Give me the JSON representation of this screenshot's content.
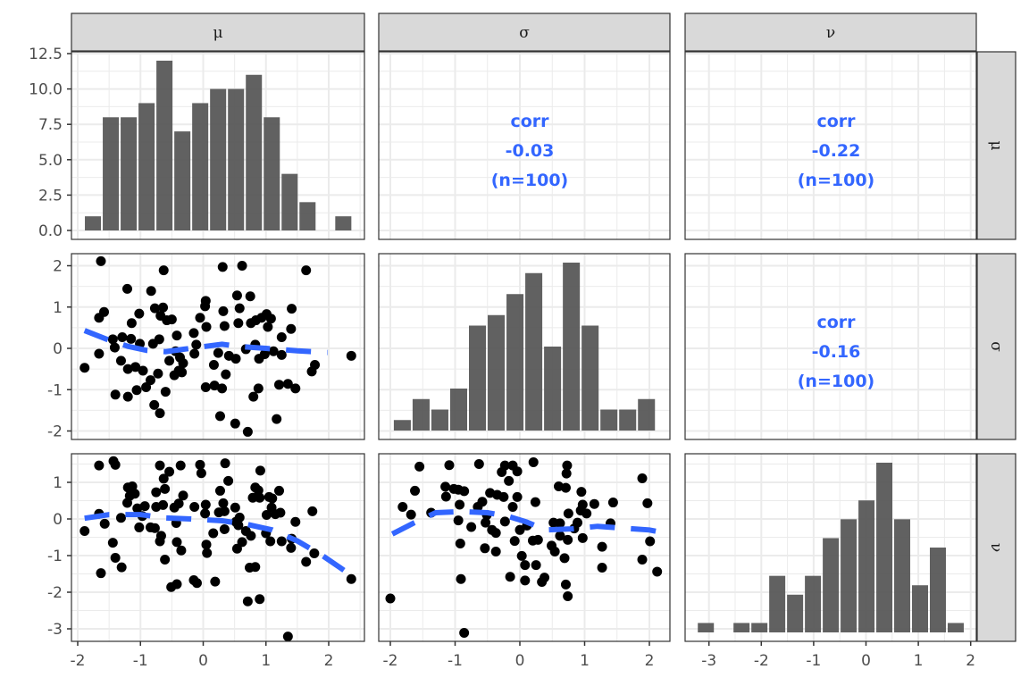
{
  "colors": {
    "bar": "#595959",
    "point": "#000000",
    "smooth": "#3366FF",
    "corr": "#3366FF",
    "strip": "#d9d9d9",
    "grid": "#ebebeb"
  },
  "chart_data": {
    "type": "scatter-matrix",
    "variables": [
      "μ",
      "σ",
      "ν"
    ],
    "axes": {
      "mu": {
        "ticks": [
          -2,
          -1,
          0,
          1,
          2
        ],
        "tick_labels": [
          "-2",
          "-1",
          "0",
          "1",
          "2"
        ]
      },
      "sigma": {
        "ticks": [
          -2,
          -1,
          0,
          1,
          2
        ],
        "tick_labels": [
          "-2",
          "-1",
          "0",
          "1",
          "2"
        ]
      },
      "nu": {
        "ticks": [
          -3,
          -2,
          -1,
          0,
          1,
          2
        ],
        "tick_labels": [
          "-3",
          "-2",
          "-1",
          "0",
          "1",
          "2"
        ]
      },
      "count": {
        "ticks": [
          0,
          2.5,
          5,
          7.5,
          10,
          12.5
        ],
        "tick_labels": [
          "0.0",
          "2.5",
          "5.0",
          "7.5",
          "10.0",
          "12.5"
        ]
      },
      "sigma_y": {
        "ticks": [
          -2,
          -1,
          0,
          1,
          2
        ],
        "tick_labels": [
          "-2",
          "-1",
          "0",
          "1",
          "2"
        ]
      },
      "nu_y": {
        "ticks": [
          -3,
          -2,
          -1,
          0,
          1
        ],
        "tick_labels": [
          "-3",
          "-2",
          "-1",
          "0",
          "1"
        ]
      }
    },
    "histograms": {
      "mu": {
        "bin_start": -1.9,
        "bin_width": 0.285,
        "counts": [
          1,
          8,
          8,
          9,
          12,
          7,
          9,
          10,
          10,
          11,
          8,
          4,
          2,
          0,
          1
        ]
      },
      "sigma": {
        "bin_start": -1.96,
        "bin_width": 0.29,
        "counts": [
          1,
          3,
          2,
          4,
          10,
          11,
          13,
          15,
          8,
          16,
          10,
          2,
          2,
          3
        ]
      },
      "nu": {
        "bin_start": -3.23,
        "bin_width": 0.341,
        "counts": [
          1,
          0,
          1,
          1,
          6,
          4,
          6,
          10,
          12,
          14,
          18,
          12,
          5,
          9,
          1
        ]
      }
    },
    "correlations": [
      {
        "pair": "μ-σ",
        "label": "corr",
        "value": "-0.03",
        "n": "(n=100)"
      },
      {
        "pair": "μ-ν",
        "label": "corr",
        "value": "-0.22",
        "n": "(n=100)"
      },
      {
        "pair": "σ-ν",
        "label": "corr",
        "value": "-0.16",
        "n": "(n=100)"
      }
    ],
    "scatter_mu_sigma": {
      "points": [
        [
          -1.89,
          -0.47
        ],
        [
          -1.63,
          2.11
        ],
        [
          -1.66,
          0.74
        ],
        [
          -1.58,
          0.88
        ],
        [
          -1.66,
          -0.13
        ],
        [
          -1.44,
          0.22
        ],
        [
          -1.41,
          0.02
        ],
        [
          -1.29,
          0.27
        ],
        [
          -1.31,
          -0.3
        ],
        [
          -1.4,
          -1.12
        ],
        [
          -1.21,
          1.44
        ],
        [
          -1.14,
          0.61
        ],
        [
          -1.15,
          0.23
        ],
        [
          -1.2,
          -0.5
        ],
        [
          -1.08,
          -0.45
        ],
        [
          -1.2,
          -1.17
        ],
        [
          -1.02,
          0.84
        ],
        [
          -1.01,
          0.11
        ],
        [
          -0.96,
          -0.54
        ],
        [
          -1.06,
          -1.01
        ],
        [
          -0.91,
          -0.94
        ],
        [
          -0.83,
          1.39
        ],
        [
          -0.77,
          0.97
        ],
        [
          -0.64,
          0.99
        ],
        [
          -0.68,
          0.79
        ],
        [
          -0.58,
          0.68
        ],
        [
          -0.5,
          0.7
        ],
        [
          -0.7,
          0.22
        ],
        [
          -0.8,
          0.11
        ],
        [
          -0.63,
          1.89
        ],
        [
          -0.84,
          -0.77
        ],
        [
          -0.72,
          -0.61
        ],
        [
          -0.78,
          -1.37
        ],
        [
          -0.69,
          -1.57
        ],
        [
          -0.6,
          -1.05
        ],
        [
          -0.54,
          -0.3
        ],
        [
          -0.42,
          0.31
        ],
        [
          -0.44,
          -0.07
        ],
        [
          -0.37,
          -0.22
        ],
        [
          -0.32,
          -0.36
        ],
        [
          -0.39,
          -0.54
        ],
        [
          -0.46,
          -0.65
        ],
        [
          -0.34,
          -0.58
        ],
        [
          -0.15,
          0.37
        ],
        [
          -0.14,
          -0.13
        ],
        [
          -0.11,
          0.09
        ],
        [
          -0.05,
          0.74
        ],
        [
          0.05,
          0.52
        ],
        [
          0.04,
          1.15
        ],
        [
          0.03,
          1.02
        ],
        [
          0.04,
          -0.94
        ],
        [
          0.18,
          -0.9
        ],
        [
          0.3,
          -0.97
        ],
        [
          0.17,
          -0.4
        ],
        [
          0.24,
          -0.11
        ],
        [
          0.32,
          0.9
        ],
        [
          0.34,
          0.54
        ],
        [
          0.31,
          1.97
        ],
        [
          0.41,
          -0.18
        ],
        [
          0.52,
          -0.25
        ],
        [
          0.36,
          -0.63
        ],
        [
          0.27,
          -1.64
        ],
        [
          0.51,
          -1.82
        ],
        [
          0.71,
          -2.02
        ],
        [
          0.62,
          2.0
        ],
        [
          0.54,
          1.28
        ],
        [
          0.58,
          0.97
        ],
        [
          0.56,
          0.61
        ],
        [
          0.75,
          1.26
        ],
        [
          0.76,
          0.61
        ],
        [
          0.68,
          -0.02
        ],
        [
          0.83,
          0.09
        ],
        [
          0.84,
          0.68
        ],
        [
          0.93,
          0.74
        ],
        [
          1.01,
          0.83
        ],
        [
          1.08,
          0.72
        ],
        [
          1.03,
          0.52
        ],
        [
          0.89,
          -0.25
        ],
        [
          0.98,
          -0.14
        ],
        [
          1.12,
          -0.07
        ],
        [
          1.25,
          -0.16
        ],
        [
          1.25,
          0.27
        ],
        [
          0.88,
          -0.97
        ],
        [
          0.8,
          -1.17
        ],
        [
          1.17,
          -1.71
        ],
        [
          1.21,
          -0.88
        ],
        [
          1.35,
          -0.86
        ],
        [
          1.47,
          -0.97
        ],
        [
          1.41,
          0.96
        ],
        [
          1.4,
          0.47
        ],
        [
          1.64,
          1.89
        ],
        [
          1.73,
          -0.56
        ],
        [
          1.78,
          -0.4
        ],
        [
          2.36,
          -0.18
        ]
      ],
      "smooth": [
        [
          -1.89,
          0.43
        ],
        [
          -1.5,
          0.2
        ],
        [
          -1.2,
          0.05
        ],
        [
          -0.9,
          -0.05
        ],
        [
          -0.6,
          -0.08
        ],
        [
          -0.3,
          -0.02
        ],
        [
          0,
          0.04
        ],
        [
          0.3,
          0.1
        ],
        [
          0.6,
          0.04
        ],
        [
          1.0,
          0.0
        ],
        [
          1.5,
          -0.06
        ],
        [
          1.98,
          -0.1
        ]
      ]
    },
    "scatter_mu_nu": {
      "points": [
        [
          -1.89,
          -0.33
        ],
        [
          -1.66,
          1.46
        ],
        [
          -1.66,
          0.14
        ],
        [
          -1.57,
          -0.13
        ],
        [
          -1.63,
          -1.48
        ],
        [
          -1.43,
          1.58
        ],
        [
          -1.4,
          1.48
        ],
        [
          -1.31,
          0.03
        ],
        [
          -1.44,
          -0.65
        ],
        [
          -1.4,
          -1.06
        ],
        [
          -1.3,
          -1.32
        ],
        [
          -1.2,
          0.86
        ],
        [
          -1.13,
          0.89
        ],
        [
          -1.17,
          0.63
        ],
        [
          -1.09,
          0.69
        ],
        [
          -1.21,
          0.44
        ],
        [
          -1.05,
          0.29
        ],
        [
          -0.93,
          0.35
        ],
        [
          -0.97,
          0.08
        ],
        [
          -1.02,
          -0.23
        ],
        [
          -0.84,
          -0.23
        ],
        [
          -0.77,
          -0.25
        ],
        [
          -0.69,
          1.46
        ],
        [
          -0.54,
          1.29
        ],
        [
          -0.63,
          1.1
        ],
        [
          -0.75,
          0.73
        ],
        [
          -0.61,
          0.82
        ],
        [
          -0.75,
          0.33
        ],
        [
          -0.64,
          0.38
        ],
        [
          -0.67,
          -0.46
        ],
        [
          -0.69,
          -0.61
        ],
        [
          -0.61,
          -1.11
        ],
        [
          -0.36,
          1.46
        ],
        [
          -0.32,
          0.64
        ],
        [
          -0.39,
          0.42
        ],
        [
          -0.46,
          0.31
        ],
        [
          -0.43,
          -0.11
        ],
        [
          -0.42,
          -0.63
        ],
        [
          -0.35,
          -0.86
        ],
        [
          -0.51,
          -1.86
        ],
        [
          -0.42,
          -1.78
        ],
        [
          -0.05,
          1.48
        ],
        [
          -0.03,
          1.25
        ],
        [
          -0.14,
          0.33
        ],
        [
          0.04,
          0.39
        ],
        [
          0.03,
          0.15
        ],
        [
          0.05,
          -0.7
        ],
        [
          0.06,
          -0.93
        ],
        [
          0.16,
          -0.39
        ],
        [
          -0.15,
          -1.67
        ],
        [
          -0.1,
          -1.75
        ],
        [
          0.19,
          -1.71
        ],
        [
          0.35,
          1.52
        ],
        [
          0.4,
          1.04
        ],
        [
          0.27,
          0.77
        ],
        [
          0.32,
          0.43
        ],
        [
          0.25,
          0.18
        ],
        [
          0.34,
          0.21
        ],
        [
          0.34,
          -0.28
        ],
        [
          0.51,
          0.31
        ],
        [
          0.58,
          0.04
        ],
        [
          0.52,
          -0.08
        ],
        [
          0.56,
          -0.17
        ],
        [
          0.68,
          -0.33
        ],
        [
          0.76,
          -0.46
        ],
        [
          0.62,
          -0.63
        ],
        [
          0.54,
          -0.81
        ],
        [
          0.91,
          1.32
        ],
        [
          0.83,
          0.86
        ],
        [
          0.88,
          0.78
        ],
        [
          0.79,
          0.58
        ],
        [
          0.9,
          0.58
        ],
        [
          1.05,
          0.6
        ],
        [
          1.1,
          0.56
        ],
        [
          1.21,
          0.77
        ],
        [
          1.09,
          0.31
        ],
        [
          1.15,
          0.13
        ],
        [
          1.23,
          0.17
        ],
        [
          1.01,
          0.11
        ],
        [
          1.0,
          -0.39
        ],
        [
          1.07,
          -0.61
        ],
        [
          1.25,
          -0.61
        ],
        [
          1.41,
          -0.54
        ],
        [
          1.4,
          -0.79
        ],
        [
          1.47,
          -0.08
        ],
        [
          0.74,
          -1.33
        ],
        [
          0.83,
          -1.31
        ],
        [
          0.71,
          -2.25
        ],
        [
          0.9,
          -2.19
        ],
        [
          1.35,
          -3.21
        ],
        [
          1.64,
          -1.17
        ],
        [
          1.77,
          -0.94
        ],
        [
          1.74,
          0.21
        ],
        [
          2.36,
          -1.64
        ]
      ],
      "smooth": [
        [
          -1.89,
          0.02
        ],
        [
          -1.5,
          0.12
        ],
        [
          -1.0,
          0.12
        ],
        [
          -0.6,
          0.03
        ],
        [
          -0.2,
          0.0
        ],
        [
          0.3,
          -0.05
        ],
        [
          0.7,
          -0.15
        ],
        [
          1.1,
          -0.3
        ],
        [
          1.5,
          -0.6
        ],
        [
          1.9,
          -1.0
        ],
        [
          2.36,
          -1.54
        ]
      ]
    },
    "scatter_sigma_nu": {
      "points": [
        [
          -2.0,
          -2.17
        ],
        [
          -1.81,
          0.33
        ],
        [
          -1.68,
          0.12
        ],
        [
          -1.62,
          0.77
        ],
        [
          -1.55,
          1.43
        ],
        [
          -1.37,
          0.17
        ],
        [
          -1.09,
          1.47
        ],
        [
          -1.15,
          0.88
        ],
        [
          -1.14,
          0.61
        ],
        [
          -1.02,
          0.82
        ],
        [
          -0.95,
          0.8
        ],
        [
          -0.86,
          0.76
        ],
        [
          -0.93,
          0.39
        ],
        [
          -0.95,
          -0.04
        ],
        [
          -0.75,
          -0.22
        ],
        [
          -0.92,
          -0.67
        ],
        [
          -0.91,
          -1.64
        ],
        [
          -0.86,
          -3.11
        ],
        [
          -0.63,
          1.5
        ],
        [
          -0.65,
          0.33
        ],
        [
          -0.58,
          0.47
        ],
        [
          -0.51,
          0.11
        ],
        [
          -0.53,
          -0.1
        ],
        [
          -0.43,
          -0.3
        ],
        [
          -0.37,
          -0.38
        ],
        [
          -0.54,
          -0.8
        ],
        [
          -0.37,
          -0.89
        ],
        [
          -0.46,
          0.71
        ],
        [
          -0.35,
          0.66
        ],
        [
          -0.25,
          0.6
        ],
        [
          -0.28,
          1.28
        ],
        [
          -0.23,
          1.46
        ],
        [
          -0.11,
          1.46
        ],
        [
          -0.04,
          1.3
        ],
        [
          -0.17,
          1.04
        ],
        [
          -0.04,
          0.6
        ],
        [
          -0.11,
          0.33
        ],
        [
          -0.23,
          -0.07
        ],
        [
          -0.08,
          -0.6
        ],
        [
          0.0,
          -0.3
        ],
        [
          0.11,
          -0.18
        ],
        [
          0.03,
          -1.01
        ],
        [
          0.08,
          -1.26
        ],
        [
          -0.15,
          -1.58
        ],
        [
          0.08,
          -1.68
        ],
        [
          0.21,
          1.55
        ],
        [
          0.24,
          0.46
        ],
        [
          0.2,
          -0.59
        ],
        [
          0.28,
          -0.57
        ],
        [
          0.25,
          -1.26
        ],
        [
          0.38,
          -1.6
        ],
        [
          0.34,
          -1.72
        ],
        [
          0.49,
          -0.73
        ],
        [
          0.54,
          -0.89
        ],
        [
          0.52,
          -0.1
        ],
        [
          0.62,
          -0.12
        ],
        [
          0.62,
          -0.46
        ],
        [
          0.6,
          0.89
        ],
        [
          0.71,
          0.85
        ],
        [
          0.73,
          1.46
        ],
        [
          0.72,
          1.24
        ],
        [
          0.75,
          0.15
        ],
        [
          0.74,
          -0.57
        ],
        [
          0.69,
          -1.07
        ],
        [
          0.71,
          -1.79
        ],
        [
          0.74,
          -2.11
        ],
        [
          0.84,
          -0.26
        ],
        [
          0.89,
          -0.1
        ],
        [
          0.95,
          0.74
        ],
        [
          0.97,
          0.39
        ],
        [
          0.94,
          0.23
        ],
        [
          1.03,
          0.15
        ],
        [
          0.97,
          -0.52
        ],
        [
          1.15,
          0.41
        ],
        [
          1.44,
          0.45
        ],
        [
          1.4,
          -0.12
        ],
        [
          1.27,
          -0.76
        ],
        [
          1.27,
          -1.33
        ],
        [
          1.89,
          1.11
        ],
        [
          1.97,
          0.43
        ],
        [
          2.01,
          -0.61
        ],
        [
          1.89,
          -1.11
        ],
        [
          2.12,
          -1.44
        ]
      ],
      "smooth": [
        [
          -1.97,
          -0.41
        ],
        [
          -1.65,
          -0.12
        ],
        [
          -1.3,
          0.17
        ],
        [
          -0.9,
          0.2
        ],
        [
          -0.5,
          0.17
        ],
        [
          -0.2,
          0.08
        ],
        [
          0.1,
          -0.08
        ],
        [
          0.4,
          -0.3
        ],
        [
          0.8,
          -0.27
        ],
        [
          1.2,
          -0.2
        ],
        [
          1.6,
          -0.25
        ],
        [
          2.0,
          -0.3
        ],
        [
          2.11,
          -0.34
        ]
      ]
    }
  }
}
